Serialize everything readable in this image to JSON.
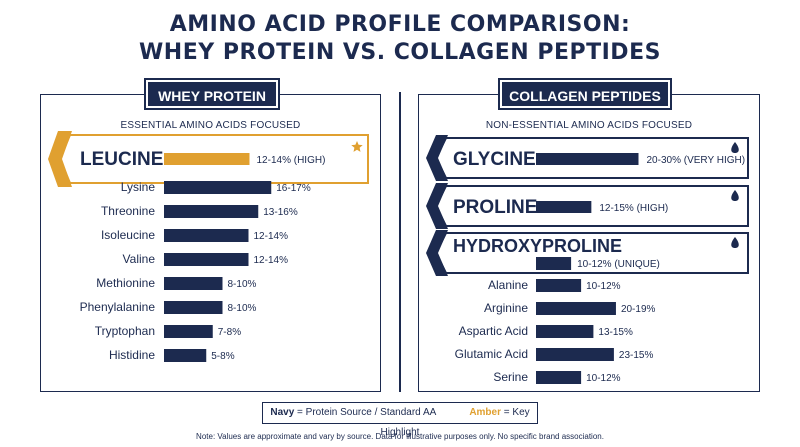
{
  "title_line1": "AMINO ACID PROFILE COMPARISON:",
  "title_line2": "WHEY PROTEIN VS. COLLAGEN PEPTIDES",
  "colors": {
    "navy": "#1c2a4f",
    "amber": "#e0a030"
  },
  "chart_data": [
    {
      "type": "bar",
      "title": "WHEY PROTEIN",
      "subtitle": "ESSENTIAL AMINO ACIDS FOCUSED",
      "highlights": [
        {
          "category": "LEUCINE",
          "value": 13,
          "label": "12-14% (HIGH)",
          "color": "amber",
          "icon": "star-icon"
        }
      ],
      "categories": [
        "Lysine",
        "Threonine",
        "Isoleucine",
        "Valine",
        "Methionine",
        "Phenylalanine",
        "Tryptophan",
        "Histidine"
      ],
      "values": [
        16.5,
        14.5,
        13,
        13,
        9,
        9,
        7.5,
        6.5
      ],
      "value_labels": [
        "16-17%",
        "13-16%",
        "12-14%",
        "12-14%",
        "8-10%",
        "8-10%",
        "7-8%",
        "5-8%"
      ]
    },
    {
      "type": "bar",
      "title": "COLLAGEN PEPTIDES",
      "subtitle": "NON-ESSENTIAL AMINO ACIDS FOCUSED",
      "highlights": [
        {
          "category": "GLYCINE",
          "value": 25,
          "label": "20-30% (VERY HIGH)",
          "color": "navy",
          "icon": "drop-icon"
        },
        {
          "category": "PROLINE",
          "value": 13.5,
          "label": "12-15% (HIGH)",
          "color": "navy",
          "icon": "drop-icon"
        },
        {
          "category": "HYDROXYPROLINE",
          "value": 11,
          "label": "10-12% (UNIQUE)",
          "color": "navy",
          "icon": "drop-icon"
        }
      ],
      "categories": [
        "Alanine",
        "Arginine",
        "Aspartic Acid",
        "Glutamic Acid",
        "Serine"
      ],
      "values": [
        11,
        19.5,
        14,
        19,
        11
      ],
      "value_labels": [
        "10-12%",
        "20-19%",
        "13-15%",
        "23-15%",
        "10-12%"
      ]
    }
  ],
  "legend": {
    "navy_label": "Navy",
    "navy_text": "= Protein Source / Standard AA",
    "amber_label": "Amber",
    "amber_text": "= Key Highlight"
  },
  "note": "Note: Values are approximate and vary by source. Data for illustrative purposes only. No specific brand association."
}
